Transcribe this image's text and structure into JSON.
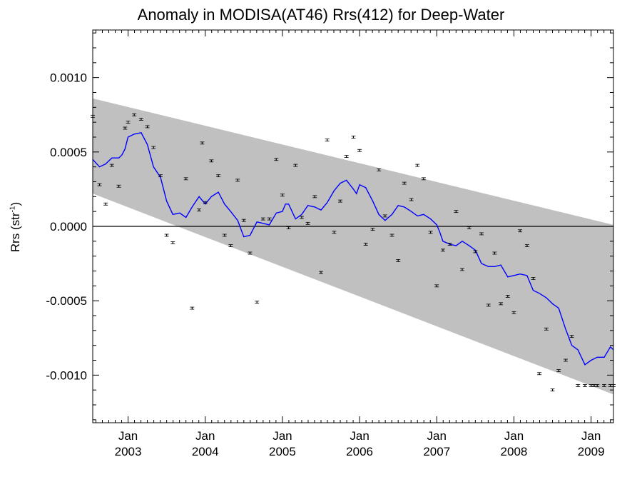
{
  "chart_data": {
    "type": "line",
    "title": "Anomaly in MODISA(AT46) Rrs(412) for Deep-Water",
    "ylabel": "Rrs (str",
    "ylabel_sup": "-1",
    "ylabel_end": ")",
    "xlim": [
      2002.542,
      2009.29
    ],
    "ylim": [
      -0.00132,
      0.00132
    ],
    "y_ticks": [
      {
        "value": 0.001,
        "label": "0.0010"
      },
      {
        "value": 0.0005,
        "label": "0.0005"
      },
      {
        "value": 0.0,
        "label": "0.0000"
      },
      {
        "value": -0.0005,
        "label": "-0.0005"
      },
      {
        "value": -0.001,
        "label": "-0.0010"
      }
    ],
    "x_ticks": [
      {
        "value": 2003.0,
        "month": "Jan",
        "year": "2003"
      },
      {
        "value": 2004.0,
        "month": "Jan",
        "year": "2004"
      },
      {
        "value": 2005.0,
        "month": "Jan",
        "year": "2005"
      },
      {
        "value": 2006.0,
        "month": "Jan",
        "year": "2006"
      },
      {
        "value": 2007.0,
        "month": "Jan",
        "year": "2007"
      },
      {
        "value": 2008.0,
        "month": "Jan",
        "year": "2008"
      },
      {
        "value": 2009.0,
        "month": "Jan",
        "year": "2009"
      }
    ],
    "zero_line": 0.0,
    "band": {
      "upper": [
        [
          2002.542,
          0.00086
        ],
        [
          2009.29,
          1e-05
        ]
      ],
      "lower": [
        [
          2002.542,
          0.00022
        ],
        [
          2009.29,
          -0.00113
        ]
      ]
    },
    "line_series": {
      "color": "#0000ff",
      "x": [
        2002.542,
        2002.63,
        2002.71,
        2002.79,
        2002.88,
        2002.92,
        2002.96,
        2003.0,
        2003.08,
        2003.17,
        2003.25,
        2003.33,
        2003.42,
        2003.5,
        2003.58,
        2003.67,
        2003.75,
        2003.83,
        2003.92,
        2004.0,
        2004.08,
        2004.17,
        2004.25,
        2004.33,
        2004.42,
        2004.5,
        2004.58,
        2004.67,
        2004.75,
        2004.83,
        2004.92,
        2005.0,
        2005.04,
        2005.08,
        2005.17,
        2005.25,
        2005.33,
        2005.42,
        2005.5,
        2005.58,
        2005.67,
        2005.75,
        2005.83,
        2005.92,
        2005.96,
        2006.0,
        2006.08,
        2006.17,
        2006.25,
        2006.33,
        2006.42,
        2006.5,
        2006.58,
        2006.67,
        2006.75,
        2006.83,
        2006.92,
        2007.0,
        2007.04,
        2007.08,
        2007.17,
        2007.25,
        2007.33,
        2007.42,
        2007.5,
        2007.58,
        2007.67,
        2007.75,
        2007.83,
        2007.92,
        2008.0,
        2008.08,
        2008.17,
        2008.25,
        2008.33,
        2008.42,
        2008.5,
        2008.58,
        2008.67,
        2008.75,
        2008.83,
        2008.92,
        2009.0,
        2009.04,
        2009.08,
        2009.17,
        2009.25,
        2009.29
      ],
      "y": [
        0.00045,
        0.0004,
        0.00042,
        0.00046,
        0.00046,
        0.00048,
        0.00052,
        0.0006,
        0.00062,
        0.00063,
        0.00055,
        0.0004,
        0.00033,
        0.00017,
        8e-05,
        9e-05,
        6e-05,
        0.00013,
        0.0002,
        0.00015,
        0.0002,
        0.00023,
        0.00015,
        0.0001,
        4e-05,
        -7e-05,
        -6e-05,
        3e-05,
        2e-05,
        1e-05,
        9e-05,
        0.0001,
        0.00015,
        0.00015,
        5e-05,
        8e-05,
        0.00014,
        0.00013,
        0.00011,
        0.00016,
        0.00024,
        0.00029,
        0.00031,
        0.00025,
        0.00022,
        0.00028,
        0.00026,
        0.00017,
        8e-05,
        4e-05,
        8e-05,
        0.00014,
        0.00013,
        0.0001,
        7e-05,
        8e-05,
        5e-05,
        1e-05,
        -4e-05,
        -0.0001,
        -0.00012,
        -0.00013,
        -0.0001,
        -0.00013,
        -0.00016,
        -0.00025,
        -0.00027,
        -0.00027,
        -0.00026,
        -0.00034,
        -0.00033,
        -0.00032,
        -0.00033,
        -0.00043,
        -0.00045,
        -0.00048,
        -0.00052,
        -0.00055,
        -0.00069,
        -0.0008,
        -0.00083,
        -0.00093,
        -0.0009,
        -0.00089,
        -0.00088,
        -0.00088,
        -0.00081,
        -0.00083
      ]
    },
    "points": {
      "x": [
        2002.542,
        2002.63,
        2002.71,
        2002.79,
        2002.88,
        2002.96,
        2003.0,
        2003.08,
        2003.17,
        2003.25,
        2003.33,
        2003.42,
        2003.5,
        2003.58,
        2003.75,
        2003.83,
        2003.92,
        2003.96,
        2004.0,
        2004.08,
        2004.17,
        2004.25,
        2004.33,
        2004.42,
        2004.5,
        2004.58,
        2004.67,
        2004.75,
        2004.83,
        2004.92,
        2005.0,
        2005.08,
        2005.17,
        2005.25,
        2005.33,
        2005.42,
        2005.5,
        2005.58,
        2005.67,
        2005.75,
        2005.83,
        2005.92,
        2006.0,
        2006.08,
        2006.17,
        2006.25,
        2006.33,
        2006.42,
        2006.5,
        2006.58,
        2006.67,
        2006.75,
        2006.83,
        2006.92,
        2007.0,
        2007.08,
        2007.17,
        2007.25,
        2007.33,
        2007.42,
        2007.5,
        2007.58,
        2007.67,
        2007.75,
        2007.83,
        2007.92,
        2008.0,
        2008.08,
        2008.17,
        2008.25,
        2008.33,
        2008.42,
        2008.5,
        2008.58,
        2008.67,
        2008.75,
        2008.83,
        2008.92,
        2009.0,
        2009.04,
        2009.08,
        2009.17,
        2009.25,
        2009.29
      ],
      "y": [
        0.00074,
        0.00028,
        0.00015,
        0.00041,
        0.00027,
        0.00066,
        0.0007,
        0.00075,
        0.00072,
        0.00067,
        0.00053,
        0.00034,
        -6e-05,
        -0.00011,
        0.00032,
        -0.00055,
        0.00011,
        0.00056,
        0.00016,
        0.00044,
        0.00034,
        -6e-05,
        -0.00013,
        0.00031,
        4e-05,
        -0.00018,
        -0.00051,
        5e-05,
        5e-05,
        0.00045,
        0.00021,
        -1e-05,
        0.00041,
        6e-05,
        2e-05,
        0.0002,
        -0.00031,
        0.00058,
        -4e-05,
        0.00017,
        0.00047,
        0.0006,
        0.00051,
        -0.00012,
        -2e-05,
        0.00038,
        7e-05,
        -6e-05,
        -0.00023,
        0.00029,
        0.00018,
        0.00041,
        0.00032,
        -4e-05,
        -0.0004,
        -0.00016,
        -0.00012,
        0.0001,
        -0.00029,
        -1e-05,
        -0.00017,
        -5e-05,
        -0.00053,
        -0.00018,
        -0.00052,
        -0.00047,
        -0.00058,
        -3e-05,
        -0.00013,
        -0.00035,
        -0.00099,
        -0.00069,
        -0.0011,
        -0.00097,
        -0.0009,
        -0.00074,
        -0.00107,
        -0.00107,
        -0.00107,
        -0.00107,
        -0.00107,
        -0.00107,
        -0.00107,
        -0.00107
      ]
    }
  }
}
